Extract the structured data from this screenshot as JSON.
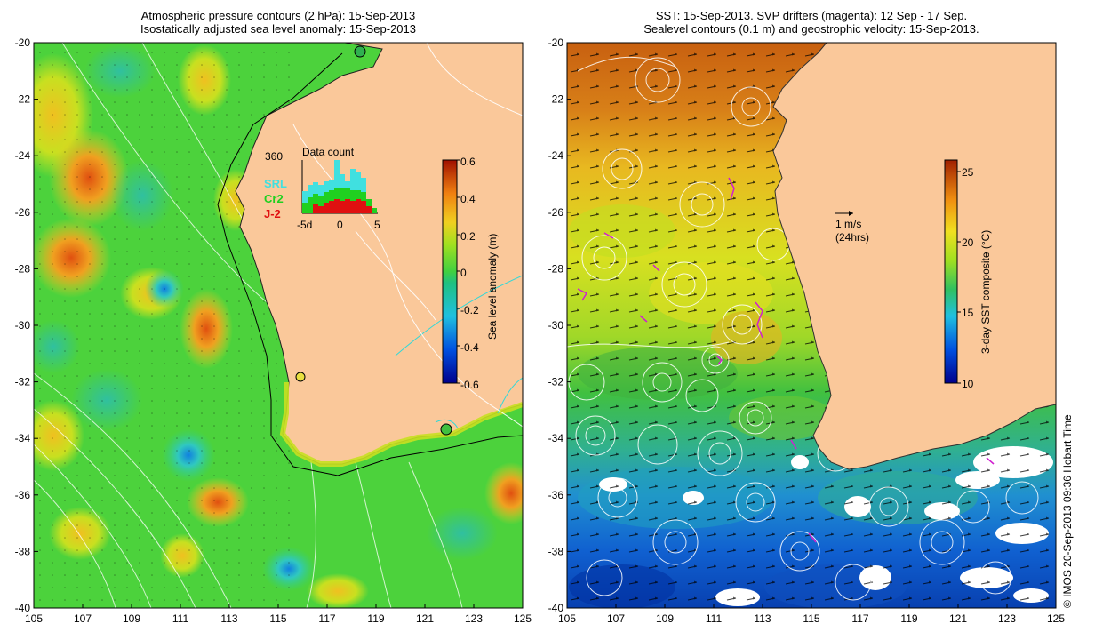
{
  "left_panel": {
    "title_line1": "Atmospheric pressure contours (2 hPa): 15-Sep-2013",
    "title_line2": "Isostatically adjusted sea level anomaly: 15-Sep-2013",
    "colorbar": {
      "label": "Sea level anomaly (m)",
      "ticks": [
        "0.6",
        "0.4",
        "0.2",
        "0",
        "-0.2",
        "-0.4",
        "-0.6"
      ],
      "range": [
        -0.6,
        0.6
      ]
    },
    "inset": {
      "title": "Data count",
      "max_label": "360",
      "legend": [
        {
          "name": "SRL",
          "color": "#40e0e0"
        },
        {
          "name": "Cr2",
          "color": "#20d020"
        },
        {
          "name": "J-2",
          "color": "#e01010"
        }
      ],
      "x_ticks": [
        "-5d",
        "0",
        "5"
      ]
    }
  },
  "right_panel": {
    "title_line1": "SST: 15-Sep-2013. SVP drifters (magenta): 12 Sep - 17 Sep.",
    "title_line2": "Sealevel contours (0.1 m) and geostrophic velocity: 15-Sep-2013.",
    "colorbar": {
      "label": "3-day SST composite (°C)",
      "ticks": [
        "25",
        "20",
        "15",
        "10"
      ],
      "range": [
        10,
        26
      ]
    },
    "velocity_key": {
      "line1": "1 m/s",
      "line2": "(24hrs)"
    }
  },
  "axes": {
    "x_ticks": [
      "105",
      "107",
      "109",
      "111",
      "113",
      "115",
      "117",
      "119",
      "121",
      "123",
      "125"
    ],
    "y_ticks": [
      "-20",
      "-22",
      "-24",
      "-26",
      "-28",
      "-30",
      "-32",
      "-34",
      "-36",
      "-38",
      "-40"
    ]
  },
  "credit": "© IMOS 20-Sep-2013 09:36 Hobart Time",
  "colors": {
    "land": "#fac89a",
    "ocean_anomaly_base": "#4cd23c",
    "sst_warm": "#d07018",
    "sst_cold": "#1060d0"
  }
}
